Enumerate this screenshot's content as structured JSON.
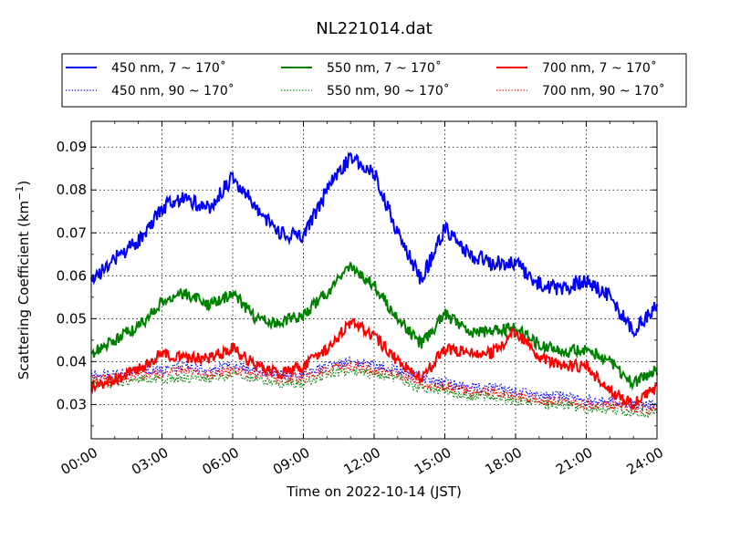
{
  "chart_data": {
    "type": "line",
    "title": "NL221014.dat",
    "xlabel": "Time on 2022-10-14 (JST)",
    "ylabel_main": "Scattering Coefficient (km",
    "ylabel_sup": "−1",
    "ylabel_close": ")",
    "xlim": [
      0,
      24
    ],
    "ylim": [
      0.022,
      0.096
    ],
    "x_ticks": [
      0,
      3,
      6,
      9,
      12,
      15,
      18,
      21,
      24
    ],
    "x_tick_labels": [
      "00:00",
      "03:00",
      "06:00",
      "09:00",
      "12:00",
      "15:00",
      "18:00",
      "21:00",
      "24:00"
    ],
    "y_ticks": [
      0.03,
      0.04,
      0.05,
      0.06,
      0.07,
      0.08,
      0.09
    ],
    "y_tick_labels": [
      "0.03",
      "0.04",
      "0.05",
      "0.06",
      "0.07",
      "0.08",
      "0.09"
    ],
    "grid": true,
    "legend_position": "above-plot",
    "x_hours": [
      0,
      1,
      2,
      3,
      4,
      5,
      6,
      7,
      8,
      9,
      10,
      11,
      12,
      13,
      14,
      15,
      16,
      17,
      18,
      19,
      20,
      21,
      22,
      23,
      24
    ],
    "series": [
      {
        "name": "450 nm, 7 ~ 170˚",
        "color": "#0000ff",
        "style": "solid",
        "noise": 0.0018,
        "values": [
          0.059,
          0.064,
          0.068,
          0.076,
          0.078,
          0.076,
          0.083,
          0.076,
          0.07,
          0.069,
          0.08,
          0.088,
          0.084,
          0.07,
          0.059,
          0.071,
          0.065,
          0.063,
          0.063,
          0.058,
          0.057,
          0.059,
          0.055,
          0.047,
          0.053
        ]
      },
      {
        "name": "450 nm, 90 ~ 170˚",
        "color": "#0000ff",
        "style": "dotted",
        "noise": 0.0012,
        "values": [
          0.037,
          0.037,
          0.038,
          0.038,
          0.039,
          0.038,
          0.039,
          0.038,
          0.037,
          0.037,
          0.039,
          0.04,
          0.039,
          0.038,
          0.036,
          0.035,
          0.034,
          0.034,
          0.033,
          0.032,
          0.032,
          0.031,
          0.031,
          0.03,
          0.03
        ]
      },
      {
        "name": "550 nm, 7 ~ 170˚",
        "color": "#008000",
        "style": "solid",
        "noise": 0.0014,
        "values": [
          0.042,
          0.045,
          0.048,
          0.054,
          0.056,
          0.053,
          0.056,
          0.05,
          0.049,
          0.051,
          0.056,
          0.062,
          0.058,
          0.05,
          0.044,
          0.051,
          0.047,
          0.047,
          0.048,
          0.044,
          0.042,
          0.043,
          0.04,
          0.035,
          0.038
        ]
      },
      {
        "name": "550 nm, 90 ~ 170˚",
        "color": "#008000",
        "style": "dotted",
        "noise": 0.0012,
        "values": [
          0.035,
          0.035,
          0.036,
          0.036,
          0.036,
          0.036,
          0.037,
          0.036,
          0.035,
          0.035,
          0.037,
          0.038,
          0.037,
          0.036,
          0.034,
          0.033,
          0.032,
          0.032,
          0.031,
          0.03,
          0.03,
          0.029,
          0.029,
          0.028,
          0.028
        ]
      },
      {
        "name": "700 nm, 7 ~ 170˚",
        "color": "#ff0000",
        "style": "solid",
        "noise": 0.0014,
        "values": [
          0.034,
          0.036,
          0.038,
          0.042,
          0.041,
          0.041,
          0.043,
          0.039,
          0.037,
          0.039,
          0.043,
          0.049,
          0.046,
          0.04,
          0.036,
          0.043,
          0.042,
          0.042,
          0.047,
          0.041,
          0.039,
          0.039,
          0.033,
          0.03,
          0.034
        ]
      },
      {
        "name": "700 nm, 90 ~ 170˚",
        "color": "#ff0000",
        "style": "dotted",
        "noise": 0.0012,
        "values": [
          0.036,
          0.036,
          0.037,
          0.037,
          0.038,
          0.037,
          0.038,
          0.037,
          0.036,
          0.036,
          0.038,
          0.039,
          0.038,
          0.037,
          0.035,
          0.034,
          0.033,
          0.033,
          0.032,
          0.031,
          0.031,
          0.03,
          0.03,
          0.029,
          0.029
        ]
      }
    ]
  }
}
